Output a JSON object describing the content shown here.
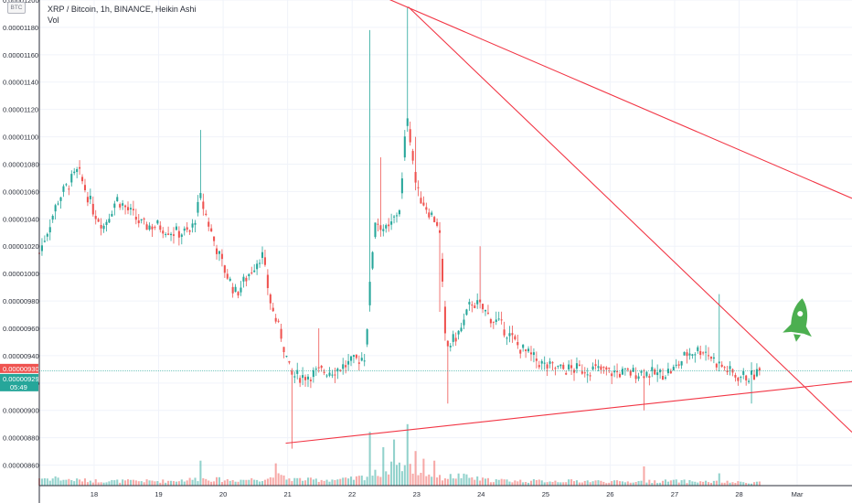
{
  "chart_data": {
    "type": "candlestick",
    "title": "XRP / Bitcoin, 1h, BINANCE, Heikin Ashi",
    "volume_label": "Vol",
    "currency_badge": "BTC",
    "y_axis": {
      "ylim": [
        8.45e-06,
        1.2e-05
      ],
      "ticks": [
        "0.00000860",
        "0.00000880",
        "0.00000900",
        "0.00000920",
        "0.00000940",
        "0.00000960",
        "0.00000980",
        "0.00001000",
        "0.00001020",
        "0.00001040",
        "0.00001060",
        "0.00001080",
        "0.00001100",
        "0.00001120",
        "0.00001140",
        "0.00001160",
        "0.00001180",
        "0.00001200"
      ],
      "tick_values": [
        8.6e-06,
        8.8e-06,
        9e-06,
        9.2e-06,
        9.4e-06,
        9.6e-06,
        9.8e-06,
        1e-05,
        1.02e-05,
        1.04e-05,
        1.06e-05,
        1.08e-05,
        1.1e-05,
        1.12e-05,
        1.14e-05,
        1.16e-05,
        1.18e-05,
        1.2e-05
      ]
    },
    "x_axis": {
      "labels": [
        "18",
        "19",
        "20",
        "21",
        "22",
        "23",
        "24",
        "25",
        "26",
        "27",
        "28",
        "Mar"
      ],
      "label_positions_days": [
        0.85,
        1.85,
        2.85,
        3.85,
        4.85,
        5.85,
        6.85,
        7.85,
        8.85,
        9.85,
        10.85,
        11.75
      ],
      "xlim_days": [
        0,
        12.6
      ]
    },
    "price_anchors": [
      [
        0.0,
        10.15
      ],
      [
        0.3,
        10.55
      ],
      [
        0.6,
        10.75
      ],
      [
        0.85,
        10.45
      ],
      [
        1.0,
        10.35
      ],
      [
        1.2,
        10.55
      ],
      [
        1.4,
        10.45
      ],
      [
        1.6,
        10.35
      ],
      [
        1.85,
        10.35
      ],
      [
        2.1,
        10.3
      ],
      [
        2.35,
        10.3
      ],
      [
        2.5,
        10.55
      ],
      [
        2.7,
        10.25
      ],
      [
        2.85,
        10.05
      ],
      [
        3.05,
        9.85
      ],
      [
        3.25,
        10.0
      ],
      [
        3.45,
        10.15
      ],
      [
        3.6,
        9.75
      ],
      [
        3.75,
        9.55
      ],
      [
        3.9,
        9.25
      ],
      [
        4.1,
        9.25
      ],
      [
        4.35,
        9.28
      ],
      [
        4.6,
        9.3
      ],
      [
        4.85,
        9.35
      ],
      [
        5.05,
        9.4
      ],
      [
        5.2,
        10.4
      ],
      [
        5.4,
        10.3
      ],
      [
        5.6,
        10.5
      ],
      [
        5.7,
        11.2
      ],
      [
        5.85,
        10.6
      ],
      [
        6.05,
        10.45
      ],
      [
        6.2,
        10.35
      ],
      [
        6.3,
        9.45
      ],
      [
        6.4,
        9.5
      ],
      [
        6.55,
        9.6
      ],
      [
        6.7,
        9.8
      ],
      [
        6.85,
        9.75
      ],
      [
        7.0,
        9.68
      ],
      [
        7.2,
        9.6
      ],
      [
        7.4,
        9.48
      ],
      [
        7.6,
        9.4
      ],
      [
        7.85,
        9.32
      ],
      [
        8.1,
        9.3
      ],
      [
        8.35,
        9.3
      ],
      [
        8.6,
        9.3
      ],
      [
        8.85,
        9.28
      ],
      [
        9.1,
        9.27
      ],
      [
        9.35,
        9.28
      ],
      [
        9.6,
        9.26
      ],
      [
        9.85,
        9.3
      ],
      [
        10.05,
        9.42
      ],
      [
        10.3,
        9.45
      ],
      [
        10.5,
        9.35
      ],
      [
        10.8,
        9.25
      ],
      [
        11.05,
        9.25
      ],
      [
        11.2,
        9.29
      ]
    ],
    "volume_anchors": [
      [
        0.0,
        2.0
      ],
      [
        0.5,
        1.5
      ],
      [
        1.0,
        1.2
      ],
      [
        1.5,
        1.2
      ],
      [
        2.0,
        1.2
      ],
      [
        2.5,
        1.8
      ],
      [
        3.0,
        1.4
      ],
      [
        3.5,
        1.8
      ],
      [
        3.7,
        2.4
      ],
      [
        3.85,
        1.8
      ],
      [
        4.2,
        1.5
      ],
      [
        4.8,
        1.6
      ],
      [
        5.1,
        2.5
      ],
      [
        5.3,
        3.5
      ],
      [
        5.6,
        5.5
      ],
      [
        5.9,
        3.5
      ],
      [
        6.2,
        2.0
      ],
      [
        6.5,
        2.5
      ],
      [
        6.9,
        1.5
      ],
      [
        7.5,
        1.2
      ],
      [
        8.5,
        1.2
      ],
      [
        9.0,
        1.0
      ],
      [
        9.8,
        1.2
      ],
      [
        10.4,
        1.0
      ],
      [
        11.0,
        0.8
      ],
      [
        11.2,
        1.0
      ]
    ],
    "volume_spikes": [
      [
        0.25,
        2.4
      ],
      [
        2.52,
        6.5
      ],
      [
        3.68,
        5.8
      ],
      [
        5.12,
        14.0
      ],
      [
        5.32,
        10.0
      ],
      [
        5.5,
        12.0
      ],
      [
        5.72,
        16.0
      ],
      [
        5.82,
        9.0
      ],
      [
        5.95,
        7.0
      ],
      [
        6.12,
        6.5
      ],
      [
        9.38,
        5.0
      ],
      [
        10.55,
        3.2
      ]
    ],
    "wick_events": [
      [
        2.52,
        11.05
      ],
      [
        3.9,
        8.72
      ],
      [
        4.35,
        9.6
      ],
      [
        5.12,
        11.78
      ],
      [
        5.3,
        10.85
      ],
      [
        5.72,
        11.95
      ],
      [
        5.82,
        11.0
      ],
      [
        6.2,
        9.72
      ],
      [
        6.32,
        9.05
      ],
      [
        6.82,
        10.2
      ],
      [
        9.38,
        9.0
      ],
      [
        10.55,
        9.85
      ],
      [
        11.05,
        9.05
      ]
    ],
    "current_price_labels": {
      "upper": {
        "value": "0.00000930",
        "color": "#ef5350"
      },
      "lower": {
        "value": "0.00000929",
        "color": "#26a69a"
      },
      "countdown": "05:49"
    },
    "trend_lines": [
      {
        "name": "upper-resistance",
        "from": [
          5.2,
          12.05
        ],
        "to": [
          12.6,
          10.55
        ]
      },
      {
        "name": "steep-resistance",
        "from": [
          5.72,
          11.95
        ],
        "to": [
          12.6,
          8.84
        ]
      },
      {
        "name": "rising-support",
        "from": [
          3.82,
          8.76
        ],
        "to": [
          12.6,
          9.21
        ]
      }
    ],
    "annotation": {
      "icon": "rocket-icon",
      "color": "#4caf50"
    },
    "colors": {
      "up": "#26a69a",
      "down": "#ef5350",
      "trend": "#f23645",
      "grid": "#f0f3fa",
      "axis": "#2a2e39"
    }
  }
}
